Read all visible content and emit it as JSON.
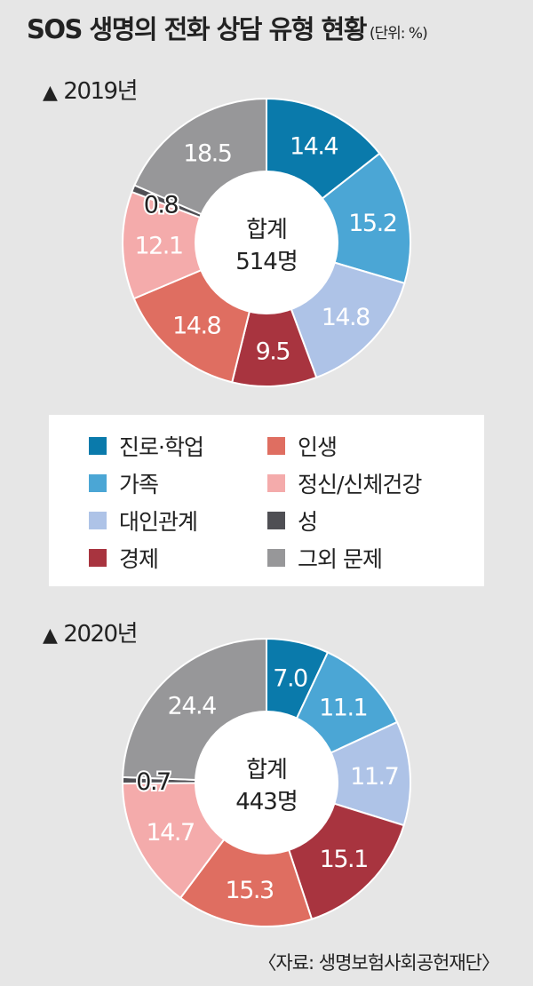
{
  "title": "SOS 생명의 전화 상담 유형 현황",
  "unit": "(단위: %)",
  "legend": [
    {
      "label": "진로·학업",
      "color": "#0a7aab"
    },
    {
      "label": "가족",
      "color": "#4ba6d5"
    },
    {
      "label": "대인관계",
      "color": "#aec3e7"
    },
    {
      "label": "경제",
      "color": "#a8343f"
    },
    {
      "label": "인생",
      "color": "#df6e61"
    },
    {
      "label": "정신/신체건강",
      "color": "#f4abab"
    },
    {
      "label": "성",
      "color": "#4f4f54"
    },
    {
      "label": "그외 문제",
      "color": "#979799"
    }
  ],
  "source": "〈자료: 생명보험사회공헌재단〉",
  "chart_data": [
    {
      "type": "pie",
      "section_label": "2019년",
      "center_label": "합계",
      "center_value": "514명",
      "categories": [
        "진로·학업",
        "가족",
        "대인관계",
        "경제",
        "인생",
        "정신/신체건강",
        "성",
        "그외 문제"
      ],
      "values": [
        14.4,
        15.2,
        14.8,
        9.5,
        14.8,
        12.1,
        0.8,
        18.5
      ],
      "value_labels": [
        "14.4",
        "15.2",
        "14.8",
        "9.5",
        "14.8",
        "12.1",
        "0.8",
        "18.5"
      ]
    },
    {
      "type": "pie",
      "section_label": "2020년",
      "center_label": "합계",
      "center_value": "443명",
      "categories": [
        "진로·학업",
        "가족",
        "대인관계",
        "경제",
        "인생",
        "정신/신체건강",
        "성",
        "그외 문제"
      ],
      "values": [
        7.0,
        11.1,
        11.7,
        15.1,
        15.3,
        14.7,
        0.7,
        24.4
      ],
      "value_labels": [
        "7.0",
        "11.1",
        "11.7",
        "15.1",
        "15.3",
        "14.7",
        "0.7",
        "24.4"
      ]
    }
  ]
}
